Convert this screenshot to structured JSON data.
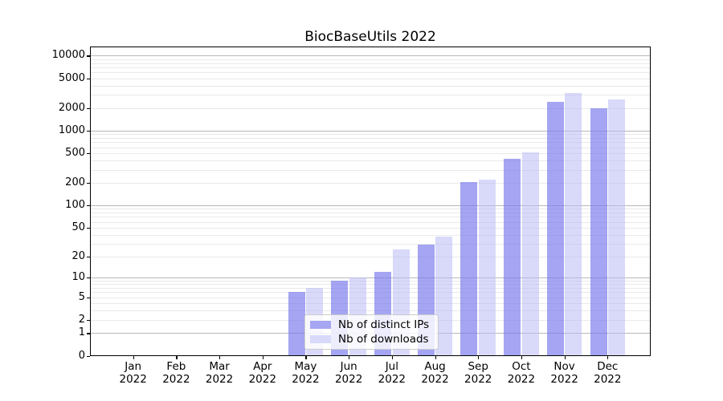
{
  "title": "BiocBaseUtils 2022",
  "colors": {
    "ips_bar": "rgba(122,122,237,0.68)",
    "downloads_bar": "rgba(186,186,246,0.55)",
    "ips_swatch": "#a6a6f2",
    "downloads_swatch": "#d9d9f9",
    "grid_major": "#b9b9b9",
    "grid_minor": "#e9e9e9",
    "axis": "#000000",
    "legend_bg": "rgba(255,255,255,0.8)",
    "legend_border": "#cccccc"
  },
  "legend": {
    "items": [
      {
        "key": "ips",
        "label": "Nb of distinct IPs"
      },
      {
        "key": "downloads",
        "label": "Nb of downloads"
      }
    ]
  },
  "chart_data": {
    "type": "bar",
    "title": "BiocBaseUtils 2022",
    "categories": [
      "Jan 2022",
      "Feb 2022",
      "Mar 2022",
      "Apr 2022",
      "May 2022",
      "Jun 2022",
      "Jul 2022",
      "Aug 2022",
      "Sep 2022",
      "Oct 2022",
      "Nov 2022",
      "Dec 2022"
    ],
    "series": [
      {
        "name": "Nb of distinct IPs",
        "key": "ips",
        "values": [
          0,
          0,
          0,
          0,
          6,
          9,
          12,
          29,
          204,
          420,
          2440,
          1980
        ]
      },
      {
        "name": "Nb of downloads",
        "key": "downloads",
        "values": [
          0,
          0,
          0,
          0,
          7,
          10,
          25,
          38,
          219,
          515,
          3220,
          2580
        ]
      }
    ],
    "yscale": "log1p",
    "yticks": [
      0,
      1,
      2,
      5,
      10,
      20,
      50,
      100,
      200,
      500,
      1000,
      2000,
      5000,
      10000
    ],
    "ylim": [
      0,
      13000
    ],
    "grid": true,
    "legend_position": "lower center inside"
  }
}
